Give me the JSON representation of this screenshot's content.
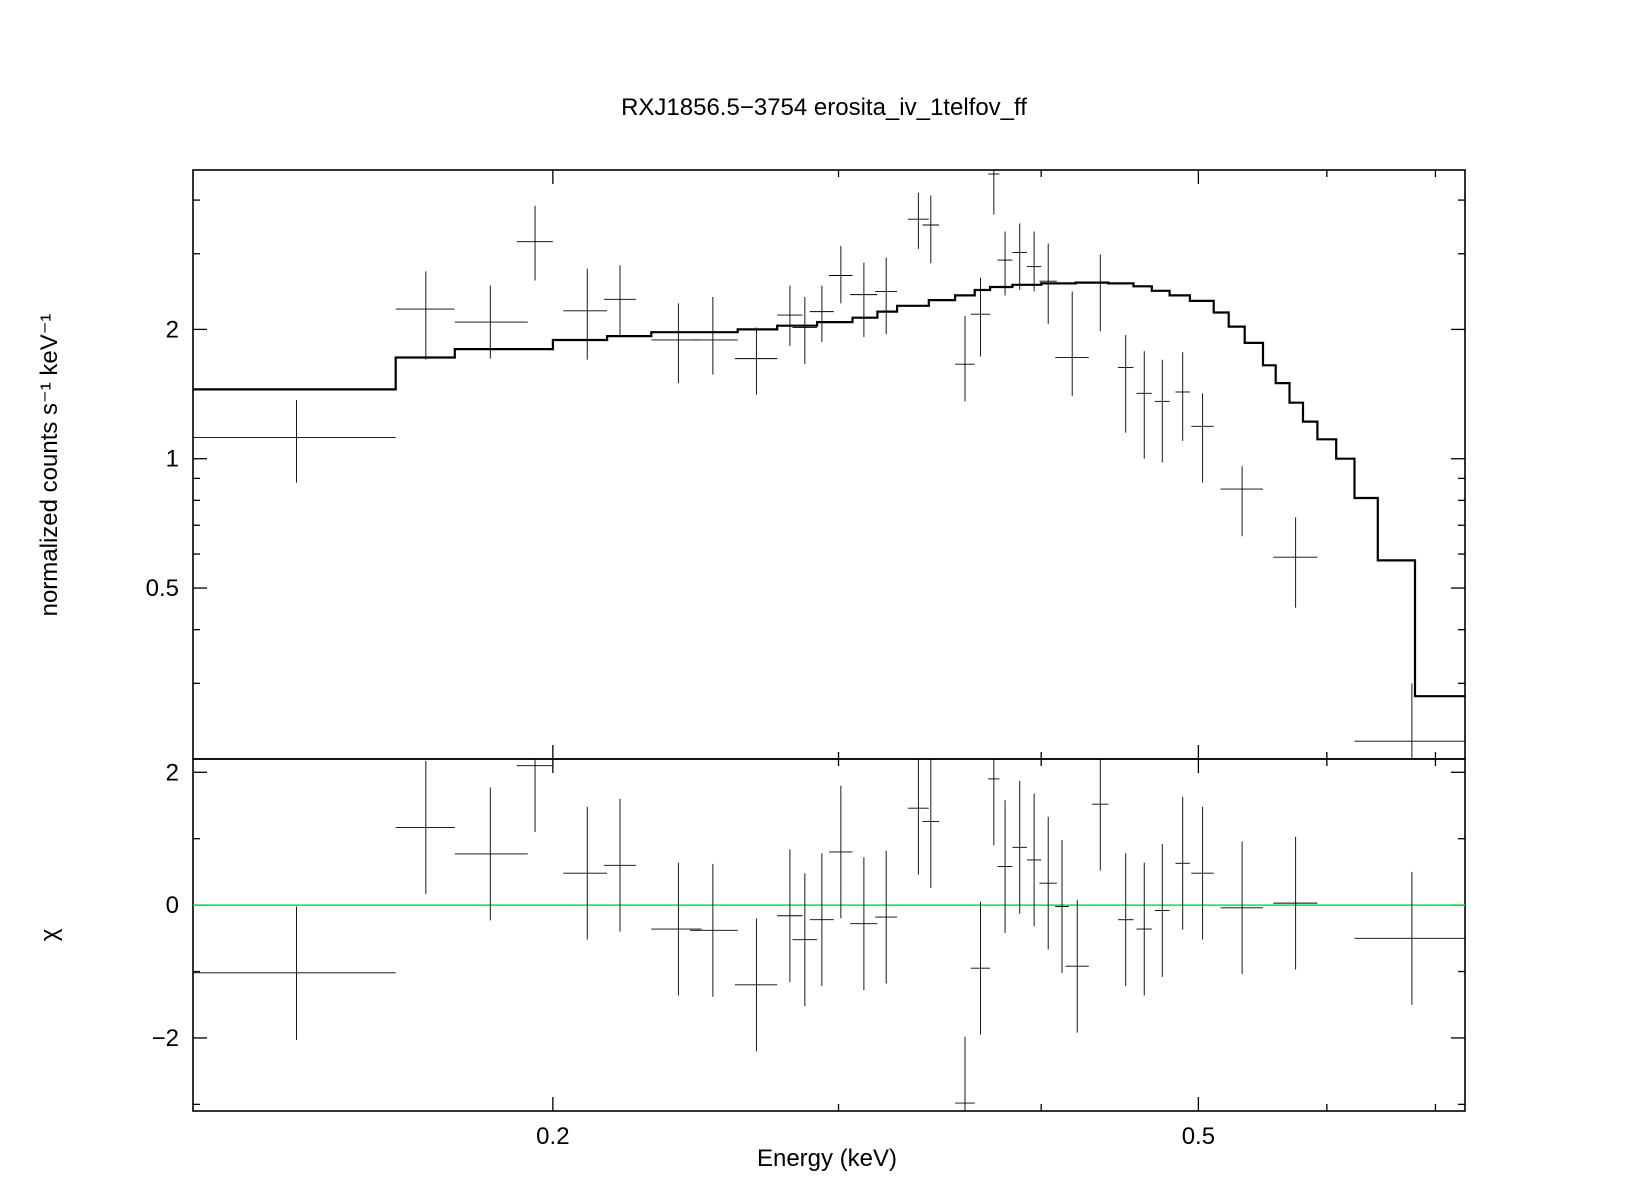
{
  "chart_data": [
    {
      "type": "line",
      "panel": "spectrum",
      "title": "RXJ1856.5−3754 erosita_iv_1telfov_ff",
      "xlabel": "",
      "ylabel": "normalized counts s⁻¹ keV⁻¹",
      "xscale": "log",
      "yscale": "log",
      "xlim": [
        0.12,
        0.73
      ],
      "ylim": [
        0.2,
        4.7
      ],
      "yticks": [
        {
          "value": 0.5,
          "label": "0.5"
        },
        {
          "value": 1,
          "label": "1"
        },
        {
          "value": 2,
          "label": "2"
        }
      ],
      "series": [
        {
          "style": "crosses",
          "points": [
            {
              "x": 0.139,
              "xlo": 0.12,
              "xhi": 0.16,
              "y": 1.12,
              "ylo": 0.88,
              "yhi": 1.37
            },
            {
              "x": 0.167,
              "xlo": 0.16,
              "xhi": 0.174,
              "y": 2.23,
              "ylo": 1.7,
              "yhi": 2.73
            },
            {
              "x": 0.183,
              "xlo": 0.174,
              "xhi": 0.193,
              "y": 2.08,
              "ylo": 1.71,
              "yhi": 2.53
            },
            {
              "x": 0.195,
              "xlo": 0.19,
              "xhi": 0.2,
              "y": 3.2,
              "ylo": 2.6,
              "yhi": 3.88
            },
            {
              "x": 0.21,
              "xlo": 0.203,
              "xhi": 0.216,
              "y": 2.21,
              "ylo": 1.7,
              "yhi": 2.77
            },
            {
              "x": 0.22,
              "xlo": 0.215,
              "xhi": 0.225,
              "y": 2.35,
              "ylo": 1.92,
              "yhi": 2.82
            },
            {
              "x": 0.239,
              "xlo": 0.23,
              "xhi": 0.247,
              "y": 1.89,
              "ylo": 1.5,
              "yhi": 2.3
            },
            {
              "x": 0.251,
              "xlo": 0.243,
              "xhi": 0.26,
              "y": 1.89,
              "ylo": 1.57,
              "yhi": 2.38
            },
            {
              "x": 0.267,
              "xlo": 0.259,
              "xhi": 0.275,
              "y": 1.71,
              "ylo": 1.41,
              "yhi": 2.02
            },
            {
              "x": 0.28,
              "xlo": 0.275,
              "xhi": 0.285,
              "y": 2.16,
              "ylo": 1.83,
              "yhi": 2.53
            },
            {
              "x": 0.286,
              "xlo": 0.281,
              "xhi": 0.291,
              "y": 2.02,
              "ylo": 1.66,
              "yhi": 2.38
            },
            {
              "x": 0.293,
              "xlo": 0.288,
              "xhi": 0.298,
              "y": 2.2,
              "ylo": 1.87,
              "yhi": 2.53
            },
            {
              "x": 0.301,
              "xlo": 0.296,
              "xhi": 0.306,
              "y": 2.67,
              "ylo": 2.3,
              "yhi": 3.13
            },
            {
              "x": 0.311,
              "xlo": 0.305,
              "xhi": 0.317,
              "y": 2.41,
              "ylo": 1.92,
              "yhi": 2.86
            },
            {
              "x": 0.321,
              "xlo": 0.316,
              "xhi": 0.326,
              "y": 2.45,
              "ylo": 1.95,
              "yhi": 2.94
            },
            {
              "x": 0.336,
              "xlo": 0.331,
              "xhi": 0.341,
              "y": 3.61,
              "ylo": 3.08,
              "yhi": 4.16
            },
            {
              "x": 0.342,
              "xlo": 0.338,
              "xhi": 0.346,
              "y": 3.5,
              "ylo": 2.85,
              "yhi": 4.1
            },
            {
              "x": 0.359,
              "xlo": 0.354,
              "xhi": 0.364,
              "y": 1.66,
              "ylo": 1.36,
              "yhi": 2.15
            },
            {
              "x": 0.367,
              "xlo": 0.362,
              "xhi": 0.372,
              "y": 2.17,
              "ylo": 1.73,
              "yhi": 2.64
            },
            {
              "x": 0.374,
              "xlo": 0.371,
              "xhi": 0.377,
              "y": 4.6,
              "ylo": 3.7,
              "yhi": 4.7
            },
            {
              "x": 0.38,
              "xlo": 0.376,
              "xhi": 0.384,
              "y": 2.9,
              "ylo": 2.4,
              "yhi": 3.38
            },
            {
              "x": 0.388,
              "xlo": 0.384,
              "xhi": 0.392,
              "y": 3.02,
              "ylo": 2.47,
              "yhi": 3.53
            },
            {
              "x": 0.396,
              "xlo": 0.392,
              "xhi": 0.4,
              "y": 2.8,
              "ylo": 2.45,
              "yhi": 3.38
            },
            {
              "x": 0.404,
              "xlo": 0.399,
              "xhi": 0.409,
              "y": 2.59,
              "ylo": 2.06,
              "yhi": 3.17
            },
            {
              "x": 0.418,
              "xlo": 0.408,
              "xhi": 0.428,
              "y": 1.72,
              "ylo": 1.4,
              "yhi": 2.45
            },
            {
              "x": 0.435,
              "xlo": 0.43,
              "xhi": 0.44,
              "y": 2.58,
              "ylo": 1.98,
              "yhi": 2.99
            },
            {
              "x": 0.451,
              "xlo": 0.446,
              "xhi": 0.456,
              "y": 1.63,
              "ylo": 1.15,
              "yhi": 1.94
            },
            {
              "x": 0.463,
              "xlo": 0.458,
              "xhi": 0.468,
              "y": 1.42,
              "ylo": 1.0,
              "yhi": 1.78
            },
            {
              "x": 0.475,
              "xlo": 0.47,
              "xhi": 0.48,
              "y": 1.36,
              "ylo": 0.98,
              "yhi": 1.7
            },
            {
              "x": 0.489,
              "xlo": 0.484,
              "xhi": 0.494,
              "y": 1.43,
              "ylo": 1.1,
              "yhi": 1.77
            },
            {
              "x": 0.503,
              "xlo": 0.495,
              "xhi": 0.511,
              "y": 1.19,
              "ylo": 0.88,
              "yhi": 1.42
            },
            {
              "x": 0.532,
              "xlo": 0.516,
              "xhi": 0.548,
              "y": 0.85,
              "ylo": 0.66,
              "yhi": 0.96
            },
            {
              "x": 0.574,
              "xlo": 0.556,
              "xhi": 0.592,
              "y": 0.59,
              "ylo": 0.45,
              "yhi": 0.73
            },
            {
              "x": 0.677,
              "xlo": 0.624,
              "xhi": 0.73,
              "y": 0.22,
              "ylo": 0.2,
              "yhi": 0.3
            }
          ]
        },
        {
          "style": "step",
          "points": [
            {
              "x": 0.12,
              "y": 1.45
            },
            {
              "x": 0.16,
              "y": 1.72
            },
            {
              "x": 0.174,
              "y": 1.8
            },
            {
              "x": 0.2,
              "y": 1.89
            },
            {
              "x": 0.216,
              "y": 1.93
            },
            {
              "x": 0.23,
              "y": 1.97
            },
            {
              "x": 0.26,
              "y": 2.0
            },
            {
              "x": 0.275,
              "y": 2.04
            },
            {
              "x": 0.291,
              "y": 2.08
            },
            {
              "x": 0.306,
              "y": 2.13
            },
            {
              "x": 0.317,
              "y": 2.2
            },
            {
              "x": 0.326,
              "y": 2.27
            },
            {
              "x": 0.341,
              "y": 2.34
            },
            {
              "x": 0.354,
              "y": 2.4
            },
            {
              "x": 0.364,
              "y": 2.47
            },
            {
              "x": 0.372,
              "y": 2.51
            },
            {
              "x": 0.384,
              "y": 2.54
            },
            {
              "x": 0.4,
              "y": 2.56
            },
            {
              "x": 0.42,
              "y": 2.57
            },
            {
              "x": 0.44,
              "y": 2.56
            },
            {
              "x": 0.456,
              "y": 2.52
            },
            {
              "x": 0.468,
              "y": 2.46
            },
            {
              "x": 0.48,
              "y": 2.4
            },
            {
              "x": 0.494,
              "y": 2.33
            },
            {
              "x": 0.511,
              "y": 2.19
            },
            {
              "x": 0.522,
              "y": 2.03
            },
            {
              "x": 0.534,
              "y": 1.86
            },
            {
              "x": 0.548,
              "y": 1.65
            },
            {
              "x": 0.558,
              "y": 1.5
            },
            {
              "x": 0.569,
              "y": 1.35
            },
            {
              "x": 0.58,
              "y": 1.22
            },
            {
              "x": 0.592,
              "y": 1.11
            },
            {
              "x": 0.608,
              "y": 1.0
            },
            {
              "x": 0.624,
              "y": 0.81
            },
            {
              "x": 0.645,
              "y": 0.58
            },
            {
              "x": 0.68,
              "y": 0.28
            },
            {
              "x": 0.73,
              "y": 0.28
            }
          ]
        }
      ]
    },
    {
      "type": "scatter",
      "panel": "residuals",
      "xlabel": "Energy (keV)",
      "ylabel": "χ",
      "xscale": "log",
      "yscale": "linear",
      "xlim": [
        0.12,
        0.73
      ],
      "ylim": [
        -3.1,
        2.2
      ],
      "xticks": [
        {
          "value": 0.2,
          "label": "0.2"
        },
        {
          "value": 0.5,
          "label": "0.5"
        }
      ],
      "yticks": [
        {
          "value": -2,
          "label": "−2"
        },
        {
          "value": 0,
          "label": "0"
        },
        {
          "value": 2,
          "label": "2"
        }
      ],
      "reference_line": {
        "y": 0,
        "color": "#00e64d"
      },
      "series": [
        {
          "style": "crosses",
          "points": [
            {
              "x": 0.139,
              "xlo": 0.12,
              "xhi": 0.16,
              "y": -1.02,
              "ylo": -2.03,
              "yhi": -0.02
            },
            {
              "x": 0.167,
              "xlo": 0.16,
              "xhi": 0.174,
              "y": 1.17,
              "ylo": 0.17,
              "yhi": 2.17
            },
            {
              "x": 0.183,
              "xlo": 0.174,
              "xhi": 0.193,
              "y": 0.77,
              "ylo": -0.23,
              "yhi": 1.77
            },
            {
              "x": 0.195,
              "xlo": 0.19,
              "xhi": 0.2,
              "y": 2.1,
              "ylo": 1.1,
              "yhi": 2.2
            },
            {
              "x": 0.21,
              "xlo": 0.203,
              "xhi": 0.216,
              "y": 0.48,
              "ylo": -0.52,
              "yhi": 1.48
            },
            {
              "x": 0.22,
              "xlo": 0.215,
              "xhi": 0.225,
              "y": 0.6,
              "ylo": -0.4,
              "yhi": 1.6
            },
            {
              "x": 0.239,
              "xlo": 0.23,
              "xhi": 0.247,
              "y": -0.36,
              "ylo": -1.36,
              "yhi": 0.64
            },
            {
              "x": 0.251,
              "xlo": 0.243,
              "xhi": 0.26,
              "y": -0.38,
              "ylo": -1.38,
              "yhi": 0.62
            },
            {
              "x": 0.267,
              "xlo": 0.259,
              "xhi": 0.275,
              "y": -1.2,
              "ylo": -2.2,
              "yhi": -0.2
            },
            {
              "x": 0.28,
              "xlo": 0.275,
              "xhi": 0.285,
              "y": -0.16,
              "ylo": -1.16,
              "yhi": 0.84
            },
            {
              "x": 0.286,
              "xlo": 0.281,
              "xhi": 0.291,
              "y": -0.52,
              "ylo": -1.52,
              "yhi": 0.48
            },
            {
              "x": 0.293,
              "xlo": 0.288,
              "xhi": 0.298,
              "y": -0.22,
              "ylo": -1.22,
              "yhi": 0.78
            },
            {
              "x": 0.301,
              "xlo": 0.296,
              "xhi": 0.306,
              "y": 0.8,
              "ylo": -0.2,
              "yhi": 1.8
            },
            {
              "x": 0.311,
              "xlo": 0.305,
              "xhi": 0.317,
              "y": -0.28,
              "ylo": -1.28,
              "yhi": 0.72
            },
            {
              "x": 0.321,
              "xlo": 0.316,
              "xhi": 0.326,
              "y": -0.18,
              "ylo": -1.18,
              "yhi": 0.82
            },
            {
              "x": 0.336,
              "xlo": 0.331,
              "xhi": 0.341,
              "y": 1.46,
              "ylo": 0.46,
              "yhi": 2.2
            },
            {
              "x": 0.342,
              "xlo": 0.338,
              "xhi": 0.346,
              "y": 1.26,
              "ylo": 0.26,
              "yhi": 2.2
            },
            {
              "x": 0.359,
              "xlo": 0.354,
              "xhi": 0.364,
              "y": -2.98,
              "ylo": -3.1,
              "yhi": -1.98
            },
            {
              "x": 0.367,
              "xlo": 0.362,
              "xhi": 0.372,
              "y": -0.95,
              "ylo": -1.95,
              "yhi": 0.05
            },
            {
              "x": 0.374,
              "xlo": 0.371,
              "xhi": 0.377,
              "y": 1.9,
              "ylo": 0.9,
              "yhi": 2.2
            },
            {
              "x": 0.38,
              "xlo": 0.376,
              "xhi": 0.384,
              "y": 0.58,
              "ylo": -0.42,
              "yhi": 1.58
            },
            {
              "x": 0.388,
              "xlo": 0.384,
              "xhi": 0.392,
              "y": 0.87,
              "ylo": -0.13,
              "yhi": 1.87
            },
            {
              "x": 0.396,
              "xlo": 0.392,
              "xhi": 0.4,
              "y": 0.68,
              "ylo": -0.32,
              "yhi": 1.68
            },
            {
              "x": 0.404,
              "xlo": 0.399,
              "xhi": 0.409,
              "y": 0.33,
              "ylo": -0.67,
              "yhi": 1.33
            },
            {
              "x": 0.412,
              "xlo": 0.408,
              "xhi": 0.416,
              "y": -0.02,
              "ylo": -1.02,
              "yhi": 0.98
            },
            {
              "x": 0.421,
              "xlo": 0.414,
              "xhi": 0.428,
              "y": -0.92,
              "ylo": -1.92,
              "yhi": 0.08
            },
            {
              "x": 0.435,
              "xlo": 0.43,
              "xhi": 0.44,
              "y": 1.52,
              "ylo": 0.52,
              "yhi": 2.2
            },
            {
              "x": 0.451,
              "xlo": 0.446,
              "xhi": 0.456,
              "y": -0.22,
              "ylo": -1.22,
              "yhi": 0.78
            },
            {
              "x": 0.463,
              "xlo": 0.458,
              "xhi": 0.468,
              "y": -0.36,
              "ylo": -1.36,
              "yhi": 0.64
            },
            {
              "x": 0.475,
              "xlo": 0.47,
              "xhi": 0.48,
              "y": -0.08,
              "ylo": -1.08,
              "yhi": 0.92
            },
            {
              "x": 0.489,
              "xlo": 0.484,
              "xhi": 0.494,
              "y": 0.63,
              "ylo": -0.37,
              "yhi": 1.63
            },
            {
              "x": 0.503,
              "xlo": 0.495,
              "xhi": 0.511,
              "y": 0.48,
              "ylo": -0.52,
              "yhi": 1.48
            },
            {
              "x": 0.532,
              "xlo": 0.516,
              "xhi": 0.548,
              "y": -0.04,
              "ylo": -1.04,
              "yhi": 0.96
            },
            {
              "x": 0.574,
              "xlo": 0.556,
              "xhi": 0.592,
              "y": 0.03,
              "ylo": -0.97,
              "yhi": 1.03
            },
            {
              "x": 0.677,
              "xlo": 0.624,
              "xhi": 0.73,
              "y": -0.5,
              "ylo": -1.5,
              "yhi": 0.5
            }
          ]
        }
      ]
    }
  ]
}
